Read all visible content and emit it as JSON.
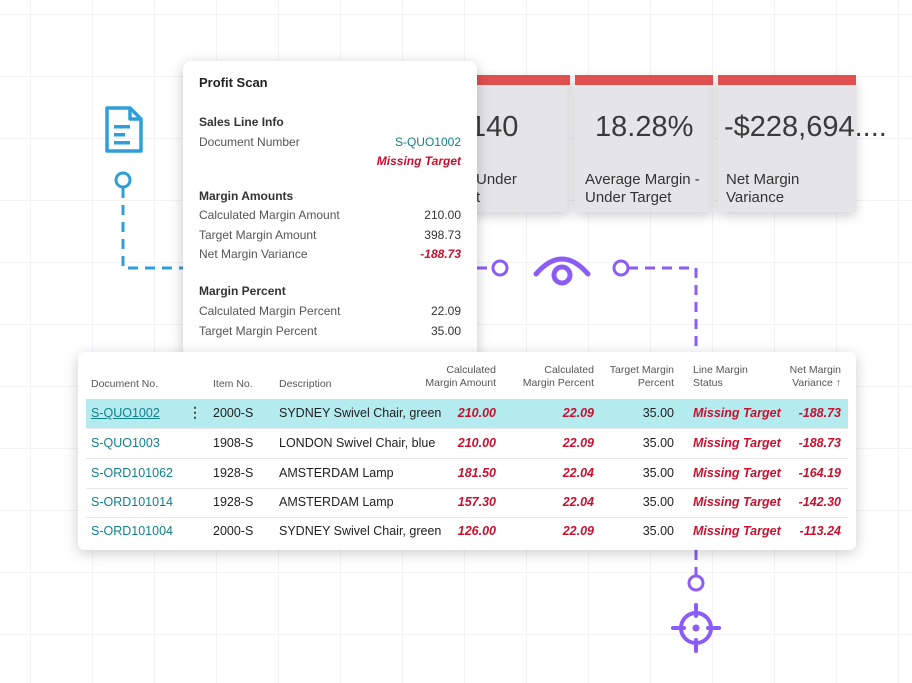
{
  "colors": {
    "accent_red": "#e05050",
    "negative": "#c8102e",
    "link": "#12808c",
    "selected_row": "#b3ebee",
    "connector_blue": "#2e9fd8",
    "connector_purple": "#8b5cf6"
  },
  "icons": [
    "document-icon",
    "eye-icon",
    "target-icon"
  ],
  "tiles": [
    {
      "value": "140",
      "label_line1": "Under",
      "label_line2": "t"
    },
    {
      "value": "18.28%",
      "label_line1": "Average Margin -",
      "label_line2": "Under Target"
    },
    {
      "value": "-$228,694....",
      "label_line1": "Net Margin",
      "label_line2": "Variance"
    }
  ],
  "card": {
    "title": "Profit Scan",
    "sales_line": {
      "heading": "Sales Line Info",
      "doc_label": "Document Number",
      "doc_value": "S-QUO1002",
      "status": "Missing Target"
    },
    "margin_amounts": {
      "heading": "Margin Amounts",
      "rows": [
        {
          "label": "Calculated Margin Amount",
          "value": "210.00"
        },
        {
          "label": "Target Margin Amount",
          "value": "398.73"
        },
        {
          "label": "Net Margin Variance",
          "value": "-188.73"
        }
      ]
    },
    "margin_percent": {
      "heading": "Margin Percent",
      "rows": [
        {
          "label": "Calculated Margin Percent",
          "value": "22.09"
        },
        {
          "label": "Target Margin Percent",
          "value": "35.00"
        }
      ]
    }
  },
  "table": {
    "headers": {
      "doc": "Document No.",
      "item": "Item No.",
      "desc": "Description",
      "calc_amt_1": "Calculated",
      "calc_amt_2": "Margin Amount",
      "calc_pct_1": "Calculated",
      "calc_pct_2": "Margin Percent",
      "target_1": "Target Margin",
      "target_2": "Percent",
      "status_1": "Line Margin",
      "status_2": "Status",
      "var_1": "Net Margin",
      "var_2": "Variance ↑"
    },
    "rows": [
      {
        "doc": "S-QUO1002",
        "item": "2000-S",
        "desc": "SYDNEY Swivel Chair, green",
        "amt": "210.00",
        "pct": "22.09",
        "target": "35.00",
        "status": "Missing Target",
        "variance": "-188.73"
      },
      {
        "doc": "S-QUO1003",
        "item": "1908-S",
        "desc": "LONDON Swivel Chair, blue",
        "amt": "210.00",
        "pct": "22.09",
        "target": "35.00",
        "status": "Missing Target",
        "variance": "-188.73"
      },
      {
        "doc": "S-ORD101062",
        "item": "1928-S",
        "desc": "AMSTERDAM Lamp",
        "amt": "181.50",
        "pct": "22.04",
        "target": "35.00",
        "status": "Missing Target",
        "variance": "-164.19"
      },
      {
        "doc": "S-ORD101014",
        "item": "1928-S",
        "desc": "AMSTERDAM Lamp",
        "amt": "157.30",
        "pct": "22.04",
        "target": "35.00",
        "status": "Missing Target",
        "variance": "-142.30"
      },
      {
        "doc": "S-ORD101004",
        "item": "2000-S",
        "desc": "SYDNEY Swivel Chair, green",
        "amt": "126.00",
        "pct": "22.09",
        "target": "35.00",
        "status": "Missing Target",
        "variance": "-113.24"
      }
    ]
  }
}
